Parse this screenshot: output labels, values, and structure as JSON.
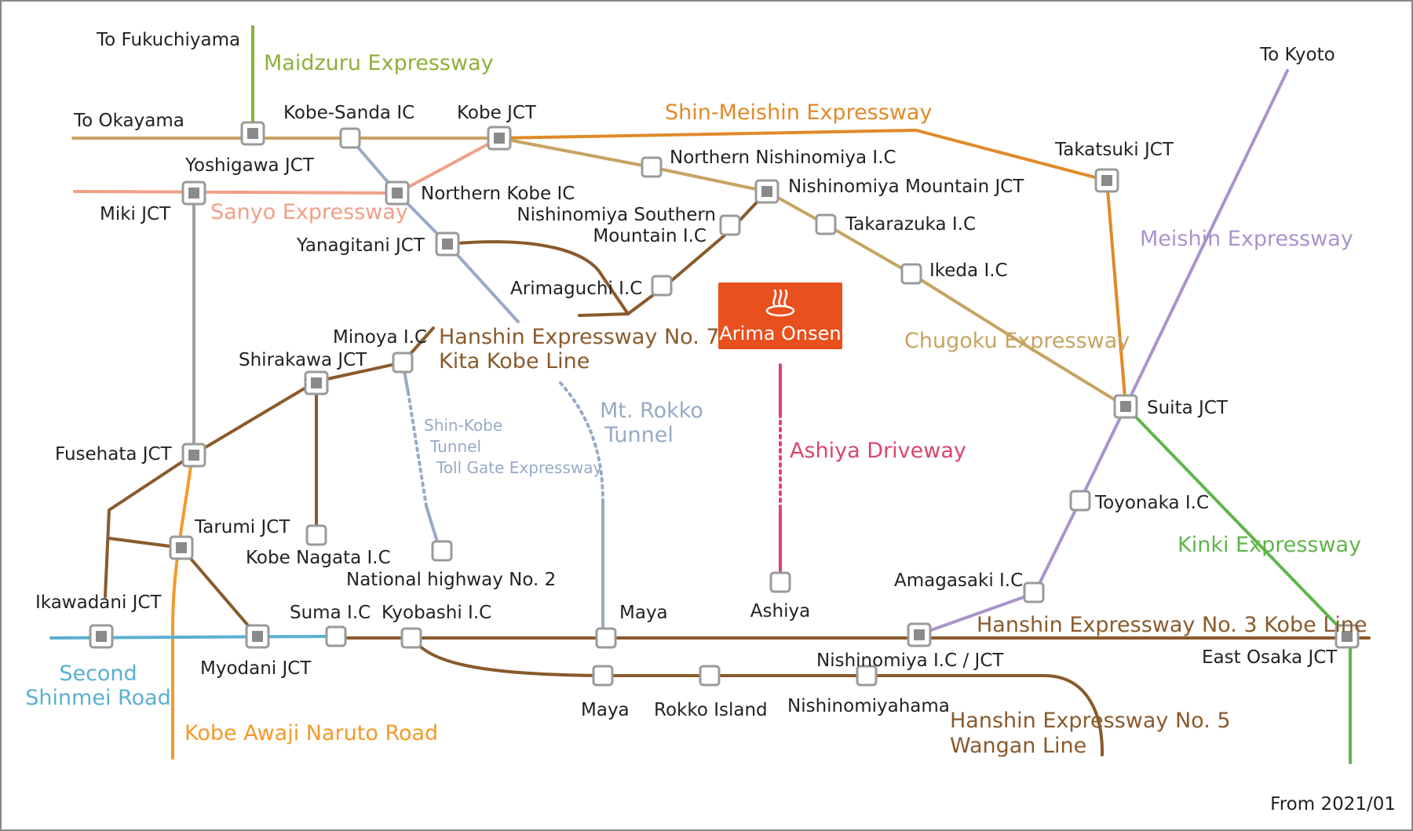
{
  "colors": {
    "maidzuru": "#8db03a",
    "sanyo": "#f0a088",
    "chugoku": "#c6a462",
    "shinmeishin": "#e08a2a",
    "meishin": "#a994cc",
    "kinki": "#5fb54a",
    "hanshin": "#8a5a2c",
    "rokko": "#98aac6",
    "ashiya": "#d8466c",
    "awaji": "#f39a2a",
    "shinmei": "#5ab0d0",
    "gray": "#a0a0a0",
    "onsen": "#e8501e"
  },
  "destinations": {
    "fukuchiyama": "To Fukuchiyama",
    "okayama": "To Okayama",
    "kyoto": "To Kyoto"
  },
  "roads": {
    "maidzuru": "Maidzuru Expressway",
    "shin_meishin": "Shin-Meishin Expressway",
    "sanyo": "Sanyo Expressway",
    "meishin": "Meishin Expressway",
    "chugoku": "Chugoku Expressway",
    "hanshin7_a": "Hanshin Expressway No. 7",
    "hanshin7_b": "Kita Kobe Line",
    "rokko_a": "Mt. Rokko",
    "rokko_b": "Tunnel",
    "shinkobe_a": "Shin-Kobe",
    "shinkobe_b": "Tunnel",
    "shinkobe_c": "Toll Gate Expressway",
    "ashiya": "Ashiya Driveway",
    "kinki": "Kinki Expressway",
    "hanshin3": "Hanshin Expressway No. 3 Kobe Line",
    "hanshin5_a": "Hanshin Expressway No. 5",
    "hanshin5_b": "Wangan Line",
    "shinmei_a": "Second",
    "shinmei_b": "Shinmei Road",
    "awaji": "Kobe Awaji Naruto Road"
  },
  "stations": {
    "kobe_sanda": "Kobe-Sanda IC",
    "kobe_jct": "Kobe JCT",
    "yoshigawa": "Yoshigawa JCT",
    "miki": "Miki JCT",
    "northern_kobe": "Northern Kobe IC",
    "northern_nishinomiya": "Northern Nishinomiya I.C",
    "nishinomiya_mountain": "Nishinomiya Mountain JCT",
    "nishinomiya_southern_a": "Nishinomiya Southern",
    "nishinomiya_southern_b": "Mountain I.C",
    "takarazuka": "Takarazuka I.C",
    "takatsuki": "Takatsuki JCT",
    "yanagitani": "Yanagitani JCT",
    "ikeda": "Ikeda I.C",
    "arimaguchi": "Arimaguchi I.C",
    "minoya": "Minoya I.C",
    "shirakawa": "Shirakawa JCT",
    "suita": "Suita JCT",
    "fusehata": "Fusehata JCT",
    "toyonaka": "Toyonaka I.C",
    "tarumi": "Tarumi JCT",
    "kobe_nagata": "Kobe Nagata I.C",
    "national_hw2": "National highway No. 2",
    "amagasaki": "Amagasaki I.C",
    "ikawadani": "Ikawadani JCT",
    "suma": "Suma I.C",
    "kyobashi": "Kyobashi I.C",
    "maya_top": "Maya",
    "ashiya": "Ashiya",
    "east_osaka": "East Osaka JCT",
    "myodani": "Myodani JCT",
    "nishinomiya_ic_jct": "Nishinomiya I.C / JCT",
    "maya_bottom": "Maya",
    "rokko_island": "Rokko Island",
    "nishinomiyahama": "Nishinomiyahama"
  },
  "badge": {
    "label": "Arima Onsen",
    "icon": "hot-spring-icon"
  },
  "footer": {
    "date": "From 2021/01"
  }
}
